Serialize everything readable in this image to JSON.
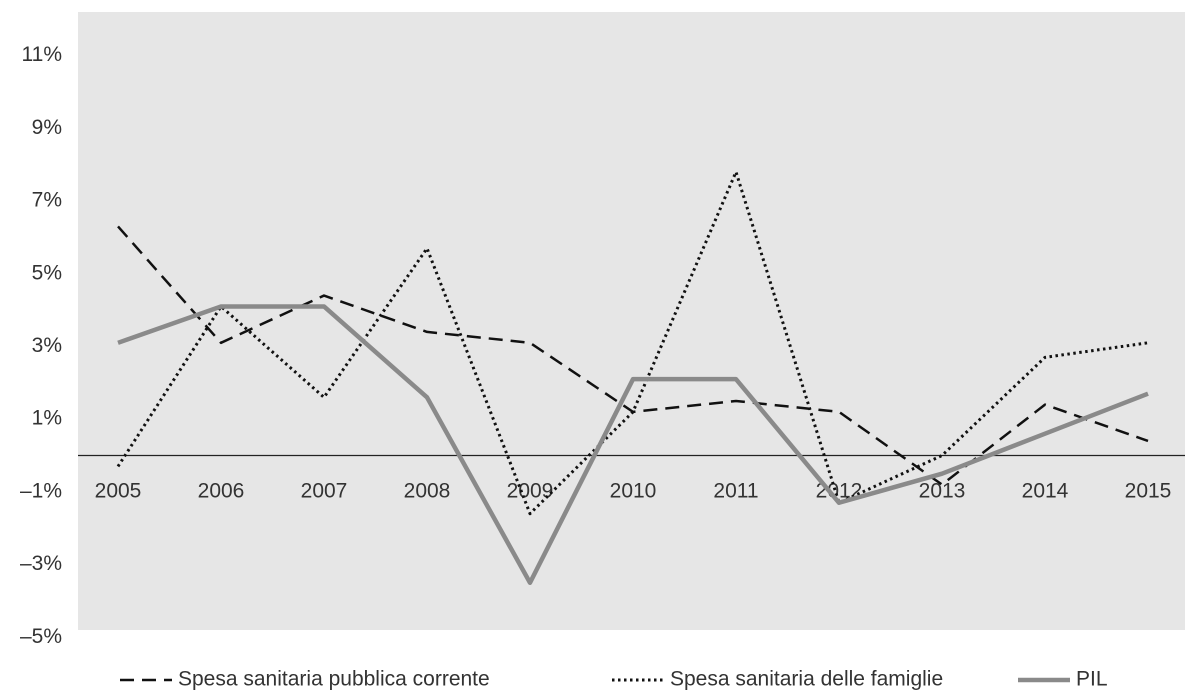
{
  "chart_data": {
    "type": "line",
    "categories": [
      "2005",
      "2006",
      "2007",
      "2008",
      "2009",
      "2010",
      "2011",
      "2012",
      "2013",
      "2014",
      "2015"
    ],
    "series": [
      {
        "name": "Spesa sanitaria pubblica corrente",
        "color": "#111111",
        "line_style": "dashed",
        "values": [
          6.3,
          3.1,
          4.4,
          3.4,
          3.1,
          1.2,
          1.5,
          1.2,
          -0.8,
          1.4,
          0.4
        ]
      },
      {
        "name": "Spesa sanitaria delle famiglie",
        "color": "#111111",
        "line_style": "dotted",
        "values": [
          -0.3,
          4.1,
          1.6,
          5.7,
          -1.6,
          1.2,
          7.8,
          -1.3,
          0.0,
          2.7,
          3.1
        ]
      },
      {
        "name": "PIL",
        "color": "#8a8a8a",
        "line_style": "solid",
        "values": [
          3.1,
          4.1,
          4.1,
          1.6,
          -3.5,
          2.1,
          2.1,
          -1.3,
          -0.5,
          0.6,
          1.7
        ]
      }
    ],
    "ylim": [
      -4.8,
      12.2
    ],
    "yticks": [
      {
        "value": 11,
        "label": "11%"
      },
      {
        "value": 9,
        "label": "9%"
      },
      {
        "value": 7,
        "label": "7%"
      },
      {
        "value": 5,
        "label": "5%"
      },
      {
        "value": 3,
        "label": "3%"
      },
      {
        "value": 1,
        "label": "1%"
      },
      {
        "value": -1,
        "label": "–1%"
      },
      {
        "value": -3,
        "label": "–3%"
      },
      {
        "value": -5,
        "label": "–5%"
      }
    ],
    "background": "#e6e6e6",
    "legend": "bottom"
  }
}
